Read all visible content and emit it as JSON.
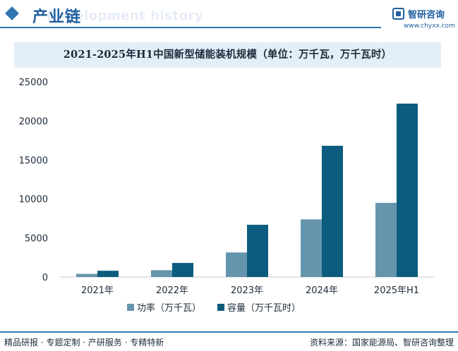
{
  "header": {
    "section_title": "产业链",
    "section_subtitle_en": "Development history",
    "logo_name": "智研咨询",
    "logo_url": "www.chyxx.com"
  },
  "footer": {
    "left_text": "精品研报 · 专题定制 · 产研服务 · 专精特新",
    "source_text": "资料来源：国家能源局、智研咨询整理"
  },
  "colors": {
    "accent": "#2f76b3",
    "power_series": "#6595ad",
    "capacity_series": "#0b5c7e",
    "title_box": "#e3eef8"
  },
  "chart_data": {
    "type": "bar",
    "title": "2021-2025年H1中国新型储能装机规模（单位：万千瓦，万千瓦时）",
    "categories": [
      "2021年",
      "2022年",
      "2023年",
      "2024年",
      "2025年H1"
    ],
    "series": [
      {
        "name": "功率（万千瓦）",
        "values": [
          400,
          870,
          3139,
          7376,
          9491
        ]
      },
      {
        "name": "容量（万千瓦时）",
        "values": [
          800,
          1800,
          6687,
          16800,
          22200
        ]
      }
    ],
    "ylim": [
      0,
      25000
    ],
    "yticks": [
      0,
      5000,
      10000,
      15000,
      20000,
      25000
    ],
    "grid": false,
    "legend": "bottom"
  }
}
